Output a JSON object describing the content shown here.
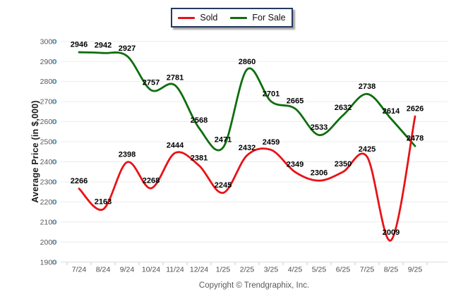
{
  "legend": {
    "items": [
      {
        "label": "Sold",
        "color": "#e81216"
      },
      {
        "label": "For Sale",
        "color": "#0e6e0e"
      }
    ]
  },
  "footer": {
    "copyright": "Copyright © Trendgraphix, Inc."
  },
  "chart_data": {
    "type": "line",
    "title": "",
    "categories": [
      "7/24",
      "8/24",
      "9/24",
      "10/24",
      "11/24",
      "12/24",
      "1/25",
      "2/25",
      "3/25",
      "4/25",
      "5/25",
      "6/25",
      "7/25",
      "8/25",
      "9/25"
    ],
    "series": [
      {
        "name": "Sold",
        "color": "#e81216",
        "values": [
          2266,
          2163,
          2398,
          2268,
          2444,
          2381,
          2245,
          2432,
          2459,
          2349,
          2306,
          2350,
          2425,
          2009,
          2626
        ]
      },
      {
        "name": "For Sale",
        "color": "#0e6e0e",
        "values": [
          2946,
          2942,
          2927,
          2757,
          2781,
          2568,
          2471,
          2860,
          2701,
          2665,
          2533,
          2632,
          2738,
          2614,
          2478
        ]
      }
    ],
    "xlabel": "",
    "ylabel": "Average Price (in $,000)",
    "ylim": [
      1900,
      3000
    ],
    "ytick_step": 100,
    "grid": true,
    "data_labels": true,
    "legend_position": "top-center"
  }
}
